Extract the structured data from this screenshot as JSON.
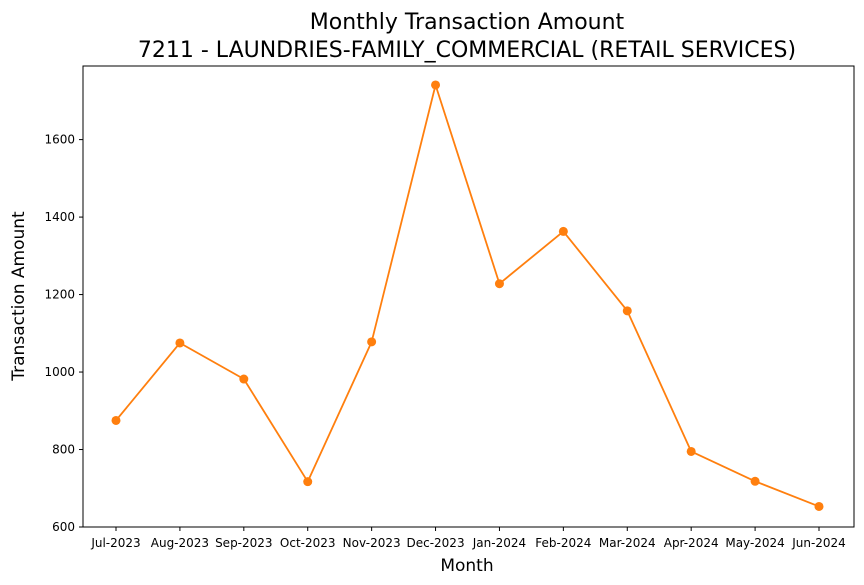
{
  "chart_data": {
    "type": "line",
    "title": "Monthly Transaction Amount",
    "subtitle": "7211 - LAUNDRIES-FAMILY_COMMERCIAL (RETAIL SERVICES)",
    "xlabel": "Month",
    "ylabel": "Transaction Amount",
    "categories": [
      "Jul-2023",
      "Aug-2023",
      "Sep-2023",
      "Oct-2023",
      "Nov-2023",
      "Dec-2023",
      "Jan-2024",
      "Feb-2024",
      "Mar-2024",
      "Apr-2024",
      "May-2024",
      "Jun-2024"
    ],
    "values": [
      875,
      1075,
      982,
      717,
      1078,
      1741,
      1228,
      1363,
      1158,
      795,
      718,
      653
    ],
    "ylim": [
      600,
      1790
    ],
    "yticks": [
      "600",
      "800",
      "1000",
      "1200",
      "1400",
      "1600"
    ],
    "grid": false,
    "line_color": "#ff7f0e",
    "marker": "circle"
  }
}
